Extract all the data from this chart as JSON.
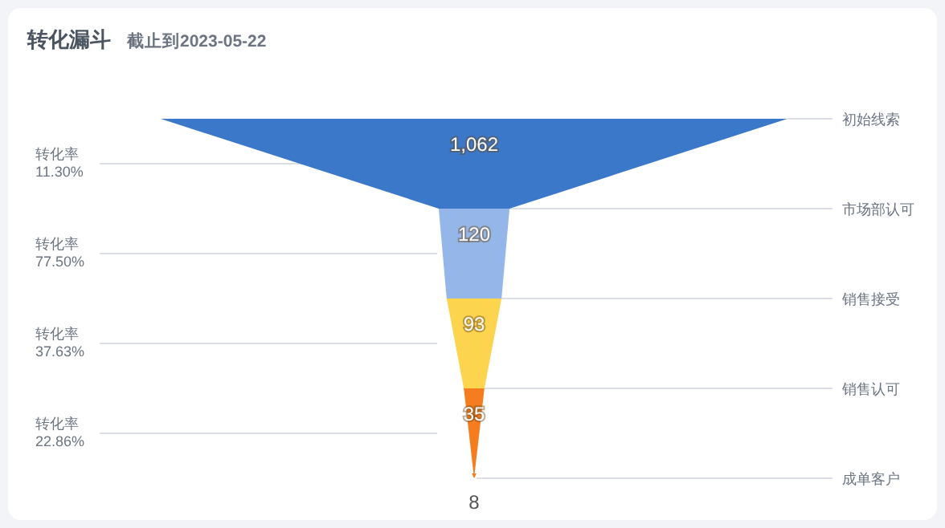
{
  "chart_data": {
    "type": "other",
    "title": "转化漏斗",
    "subtitle": "截止到2023-05-22",
    "categories": [
      "初始线索",
      "市场部认可",
      "销售接受",
      "销售认可",
      "成单客户"
    ],
    "values": [
      1062,
      120,
      93,
      35,
      8
    ],
    "colors": [
      "#3b78c9",
      "#94b6e9",
      "#fdd44e",
      "#f57d1f",
      "#f57d1f"
    ],
    "value_labels": [
      "1,062",
      "120",
      "93",
      "35",
      "8"
    ],
    "annotations": [
      "转化率\n11.30%",
      "转化率\n77.50%",
      "转化率\n37.63%",
      "转化率\n22.86%"
    ]
  }
}
